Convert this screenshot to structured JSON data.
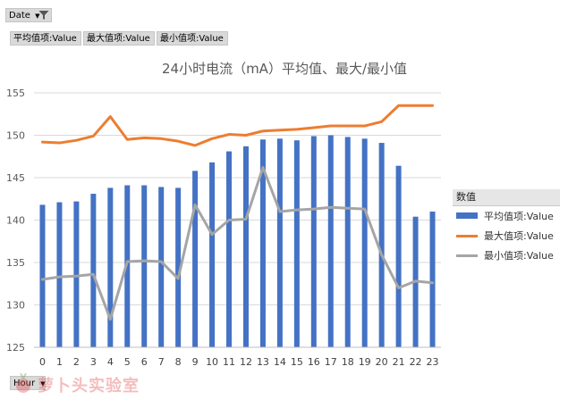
{
  "filters": {
    "date_label": "Date",
    "value_fields": [
      "平均值项:Value",
      "最大值项:Value",
      "最小值项:Value"
    ],
    "hour_label": "Hour"
  },
  "legend": {
    "title": "数值"
  },
  "watermark": {
    "text": "萝卜头实验室"
  },
  "chart_data": {
    "type": "bar",
    "title": "24小时电流（mA）平均值、最大/最小值",
    "xlabel": "",
    "ylabel": "",
    "categories": [
      "0",
      "1",
      "2",
      "3",
      "4",
      "5",
      "6",
      "7",
      "8",
      "9",
      "10",
      "11",
      "12",
      "13",
      "14",
      "15",
      "16",
      "17",
      "18",
      "19",
      "20",
      "21",
      "22",
      "23"
    ],
    "ylim": [
      125,
      155
    ],
    "yticks": [
      125,
      130,
      135,
      140,
      145,
      150,
      155
    ],
    "grid": true,
    "legend_position": "right",
    "series": [
      {
        "name": "平均值项:Value",
        "type": "bar",
        "color": "#4472c4",
        "values": [
          141.8,
          142.1,
          142.2,
          143.1,
          143.8,
          144.1,
          144.1,
          143.9,
          143.8,
          145.8,
          146.8,
          148.1,
          148.7,
          149.5,
          149.6,
          149.4,
          149.9,
          150.0,
          149.8,
          149.6,
          149.1,
          146.4,
          140.4,
          141.0
        ]
      },
      {
        "name": "最大值项:Value",
        "type": "line",
        "color": "#ed7d31",
        "values": [
          149.2,
          149.1,
          149.4,
          149.9,
          152.2,
          149.5,
          149.7,
          149.6,
          149.3,
          148.8,
          149.6,
          150.1,
          150.0,
          150.5,
          150.6,
          150.7,
          150.9,
          151.1,
          151.1,
          151.1,
          151.6,
          153.5,
          153.5,
          153.5
        ]
      },
      {
        "name": "最小值项:Value",
        "type": "line",
        "color": "#a5a5a5",
        "values": [
          133.0,
          133.3,
          133.4,
          133.6,
          128.3,
          135.1,
          135.2,
          135.1,
          133.1,
          141.8,
          138.3,
          140.0,
          140.1,
          146.2,
          141.0,
          141.2,
          141.3,
          141.5,
          141.4,
          141.3,
          135.9,
          132.0,
          132.8,
          132.6
        ]
      }
    ]
  }
}
